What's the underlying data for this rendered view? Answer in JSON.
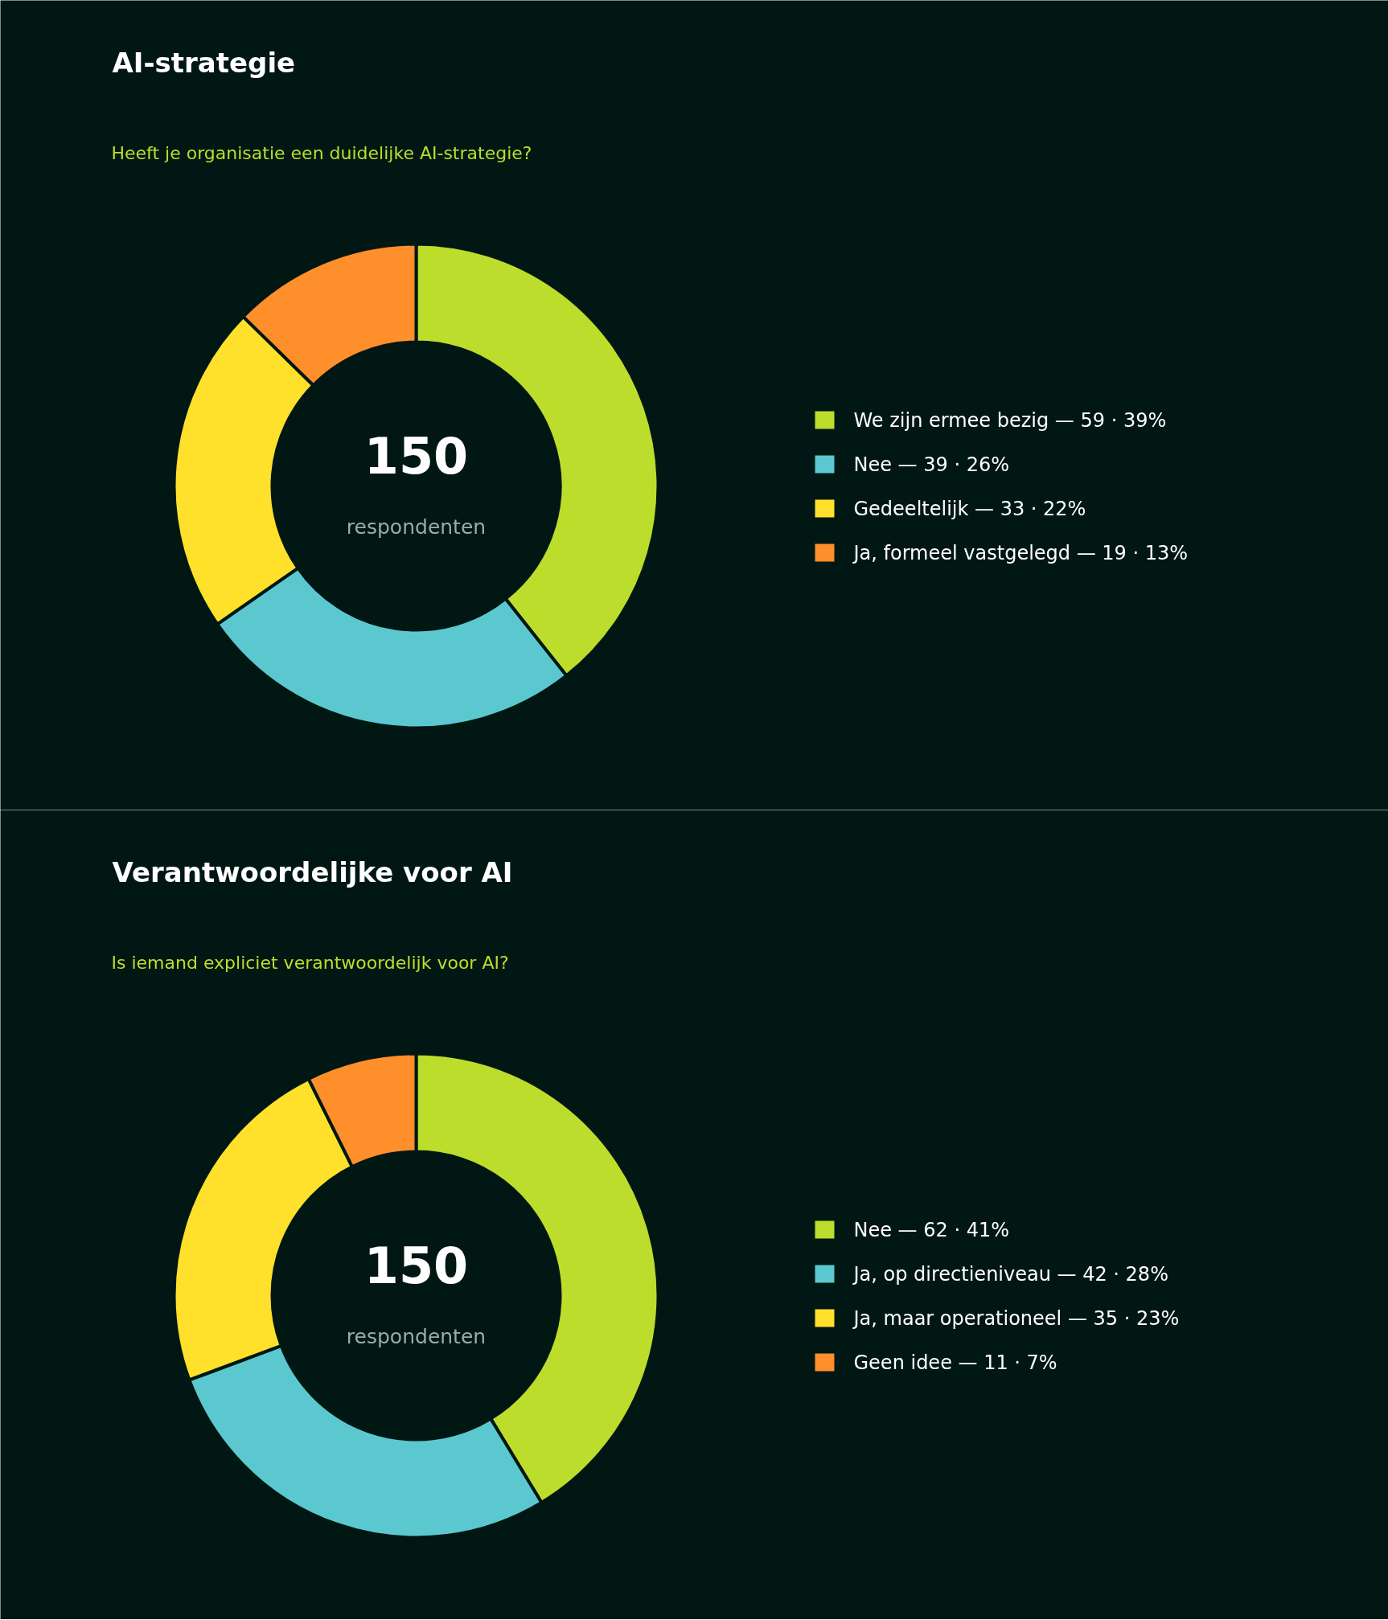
{
  "chart_data": [
    {
      "type": "donut",
      "title": "AI-strategie",
      "subtitle": "Heeft je organisatie een duidelijke AI-strategie?",
      "categories": [
        "We zijn ermee bezig   —   59 · 39%",
        "Nee   —   39 · 26%",
        "Gedeeltelijk   —   33 · 22%",
        "Ja, formeel vastgelegd   —   19 · 13%"
      ],
      "values": [
        59,
        39,
        33,
        19
      ],
      "colors": [
        "#bcdd2b",
        "#5bc8cf",
        "#ffe02a",
        "#ff8f2a"
      ],
      "annotations": [
        "150",
        "respondenten"
      ],
      "legend": "right"
    },
    {
      "type": "donut",
      "title": "Verantwoordelijke voor AI",
      "subtitle": "Is iemand expliciet verantwoordelijk voor AI?",
      "categories": [
        "Nee   —   62 · 41%",
        "Ja, op directieniveau   —   42 · 28%",
        "Ja, maar operationeel   —   35 · 23%",
        "Geen idee   —   11 · 7%"
      ],
      "values": [
        62,
        42,
        35,
        11
      ],
      "colors": [
        "#bcdd2b",
        "#5bc8cf",
        "#ffe02a",
        "#ff8f2a"
      ],
      "annotations": [
        "150",
        "respondenten"
      ],
      "legend": "right"
    }
  ]
}
